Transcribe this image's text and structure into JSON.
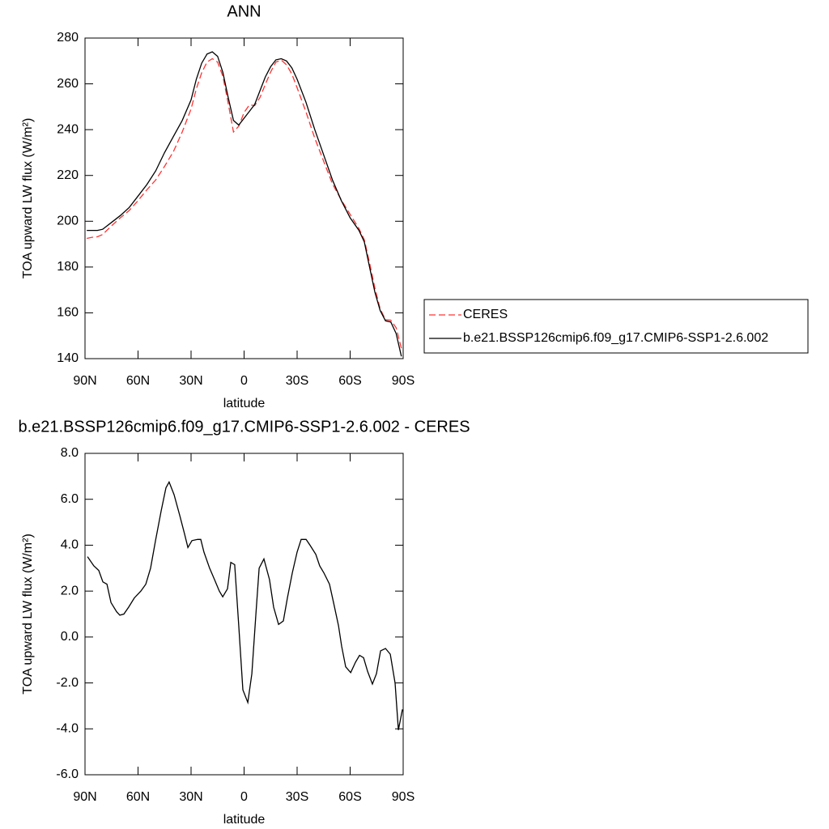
{
  "chart_data": [
    {
      "type": "line",
      "title": "ANN",
      "xlabel": "latitude",
      "ylabel": "TOA upward LW flux (W/m²)",
      "x": [
        89,
        86,
        83,
        80,
        75,
        70,
        65,
        60,
        55,
        50,
        45,
        40,
        35,
        30,
        27,
        24,
        21,
        18,
        15,
        12,
        9,
        6,
        3,
        0,
        -3,
        -6,
        -9,
        -12,
        -15,
        -18,
        -21,
        -24,
        -27,
        -30,
        -35,
        -40,
        -45,
        -50,
        -55,
        -60,
        -65,
        -68,
        -71,
        -74,
        -77,
        -80,
        -83,
        -86,
        -89
      ],
      "series": [
        {
          "name": "CERES",
          "color": "#ff3333",
          "style": "dashed",
          "values": [
            192.5,
            193,
            193.2,
            194.2,
            198,
            201.5,
            204.7,
            209,
            213.7,
            218,
            224,
            230.4,
            239,
            249,
            257.8,
            264.8,
            269.5,
            271,
            269.5,
            263.3,
            251.5,
            239,
            241.5,
            247.5,
            250.8,
            250.5,
            254,
            259.7,
            265.2,
            269.5,
            270.4,
            268.3,
            264.3,
            258.3,
            247.8,
            236.3,
            226.2,
            216.3,
            209.3,
            203,
            196.8,
            191.9,
            181.8,
            170.8,
            161.7,
            157,
            156.8,
            153.5,
            144.5
          ]
        },
        {
          "name": "b.e21.BSSP126cmip6.f09_g17.CMIP6-SSP1-2.6.002",
          "color": "#000000",
          "style": "solid",
          "values": [
            196,
            196,
            196,
            196.5,
            199.5,
            202.5,
            206,
            211,
            216,
            222,
            230,
            237,
            244,
            253,
            262,
            269,
            273,
            274,
            272,
            265,
            254,
            244,
            242,
            245,
            248,
            251,
            257,
            263,
            267.5,
            270.5,
            271,
            270,
            267,
            262,
            252,
            240,
            229,
            218,
            209,
            201.5,
            196,
            191,
            180,
            169,
            161,
            156.5,
            156,
            151,
            141
          ]
        }
      ],
      "xlim": [
        90,
        -90
      ],
      "xticks": [
        {
          "value": 90,
          "label": "90N"
        },
        {
          "value": 60,
          "label": "60N"
        },
        {
          "value": 30,
          "label": "30N"
        },
        0,
        {
          "value": -30,
          "label": "30S"
        },
        {
          "value": -60,
          "label": "60S"
        },
        {
          "value": -90,
          "label": "90S"
        }
      ],
      "ylim": [
        140,
        280
      ],
      "yticks": [
        140,
        160,
        180,
        200,
        220,
        240,
        260,
        280
      ],
      "legend": "right"
    },
    {
      "type": "line",
      "title": "b.e21.BSSP126cmip6.f09_g17.CMIP6-SSP1-2.6.002 - CERES",
      "xlabel": "latitude",
      "ylabel": "TOA upward LW flux (W/m²)",
      "x": [
        88.6,
        85.0,
        82.2,
        79.9,
        77.6,
        75.3,
        72.1,
        70.3,
        68.0,
        65.3,
        62.1,
        58.4,
        55.6,
        52.9,
        50.1,
        46.9,
        44.2,
        42.4,
        39.6,
        36.4,
        33.7,
        31.8,
        29.5,
        26.3,
        24.5,
        22.7,
        19.5,
        16.7,
        14.0,
        12.1,
        9.4,
        7.5,
        5.3,
        3.0,
        0.7,
        -2.1,
        -4.4,
        -6.7,
        -8.5,
        -11.2,
        -14.4,
        -16.7,
        -19.5,
        -22.2,
        -24.5,
        -27.3,
        -30.0,
        -32.3,
        -35.1,
        -37.3,
        -40.6,
        -42.8,
        -45.1,
        -48.3,
        -50.6,
        -53.4,
        -55.2,
        -57.5,
        -60.3,
        -63.0,
        -65.3,
        -67.6,
        -69.9,
        -72.6,
        -74.9,
        -77.2,
        -80.0,
        -82.7,
        -85.4,
        -87.3,
        -89.6
      ],
      "values": [
        3.5,
        3.1,
        2.9,
        2.4,
        2.3,
        1.5,
        1.1,
        0.95,
        1.0,
        1.3,
        1.7,
        2.0,
        2.3,
        3.0,
        4.2,
        5.5,
        6.5,
        6.75,
        6.2,
        5.3,
        4.5,
        3.9,
        4.2,
        4.25,
        4.25,
        3.7,
        3.0,
        2.5,
        2.0,
        1.75,
        2.1,
        3.25,
        3.15,
        0.5,
        -2.3,
        -2.85,
        -1.6,
        1.0,
        3.0,
        3.4,
        2.5,
        1.3,
        0.55,
        0.7,
        1.7,
        2.8,
        3.7,
        4.25,
        4.25,
        4.0,
        3.6,
        3.1,
        2.8,
        2.3,
        1.5,
        0.5,
        -0.4,
        -1.3,
        -1.55,
        -1.1,
        -0.8,
        -0.9,
        -1.5,
        -2.05,
        -1.6,
        -0.6,
        -0.5,
        -0.75,
        -2.0,
        -4.05,
        -3.15
      ],
      "color": "#000000",
      "xlim": [
        90,
        -90
      ],
      "xticks": [
        {
          "value": 90,
          "label": "90N"
        },
        {
          "value": 60,
          "label": "60N"
        },
        {
          "value": 30,
          "label": "30N"
        },
        0,
        {
          "value": -30,
          "label": "30S"
        },
        {
          "value": -60,
          "label": "60S"
        },
        {
          "value": -90,
          "label": "90S"
        }
      ],
      "ylim": [
        -6,
        8
      ],
      "yticks": [
        {
          "value": -6,
          "label": "-6.0"
        },
        {
          "value": -4,
          "label": "-4.0"
        },
        {
          "value": -2,
          "label": "-2.0"
        },
        {
          "value": 0,
          "label": "0.0"
        },
        {
          "value": 2,
          "label": "2.0"
        },
        {
          "value": 4,
          "label": "4.0"
        },
        {
          "value": 6,
          "label": "6.0"
        },
        {
          "value": 8,
          "label": "8.0"
        }
      ]
    }
  ]
}
